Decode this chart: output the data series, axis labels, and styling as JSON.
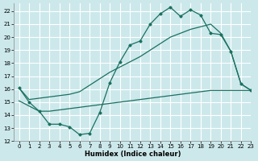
{
  "xlabel": "Humidex (Indice chaleur)",
  "xlim": [
    -0.5,
    23
  ],
  "ylim": [
    12,
    22.6
  ],
  "xticks": [
    0,
    1,
    2,
    3,
    4,
    5,
    6,
    7,
    8,
    9,
    10,
    11,
    12,
    13,
    14,
    15,
    16,
    17,
    18,
    19,
    20,
    21,
    22,
    23
  ],
  "yticks": [
    12,
    13,
    14,
    15,
    16,
    17,
    18,
    19,
    20,
    21,
    22
  ],
  "bg_color": "#cce8eb",
  "grid_color": "#ffffff",
  "line_color": "#1a7060",
  "curve1_x": [
    0,
    1,
    2,
    3,
    4,
    5,
    6,
    7,
    8,
    9,
    10,
    11,
    12,
    13,
    14,
    15,
    16,
    17,
    18,
    19,
    20,
    21,
    22,
    23
  ],
  "curve1_y": [
    16.1,
    15.0,
    14.3,
    13.3,
    13.3,
    13.1,
    12.5,
    12.6,
    14.2,
    16.5,
    18.1,
    19.4,
    19.7,
    21.0,
    21.8,
    22.3,
    21.6,
    22.1,
    21.7,
    20.3,
    20.2,
    18.9,
    16.4,
    15.9
  ],
  "curve2_x": [
    0,
    1,
    2,
    3,
    4,
    5,
    6,
    7,
    8,
    9,
    10,
    11,
    12,
    13,
    14,
    15,
    16,
    17,
    18,
    19,
    20,
    21,
    22,
    23
  ],
  "curve2_y": [
    16.1,
    15.2,
    15.3,
    15.4,
    15.5,
    15.6,
    15.8,
    16.3,
    16.8,
    17.3,
    17.7,
    18.1,
    18.5,
    19.0,
    19.5,
    20.0,
    20.3,
    20.6,
    20.8,
    21.0,
    20.3,
    18.9,
    16.4,
    15.9
  ],
  "curve3_x": [
    0,
    1,
    2,
    3,
    4,
    5,
    6,
    7,
    8,
    9,
    10,
    11,
    12,
    13,
    14,
    15,
    16,
    17,
    18,
    19,
    20,
    21,
    22,
    23
  ],
  "curve3_y": [
    15.1,
    14.7,
    14.3,
    14.3,
    14.4,
    14.5,
    14.6,
    14.7,
    14.8,
    14.9,
    15.0,
    15.1,
    15.2,
    15.3,
    15.4,
    15.5,
    15.6,
    15.7,
    15.8,
    15.9,
    15.9,
    15.9,
    15.9,
    15.9
  ]
}
